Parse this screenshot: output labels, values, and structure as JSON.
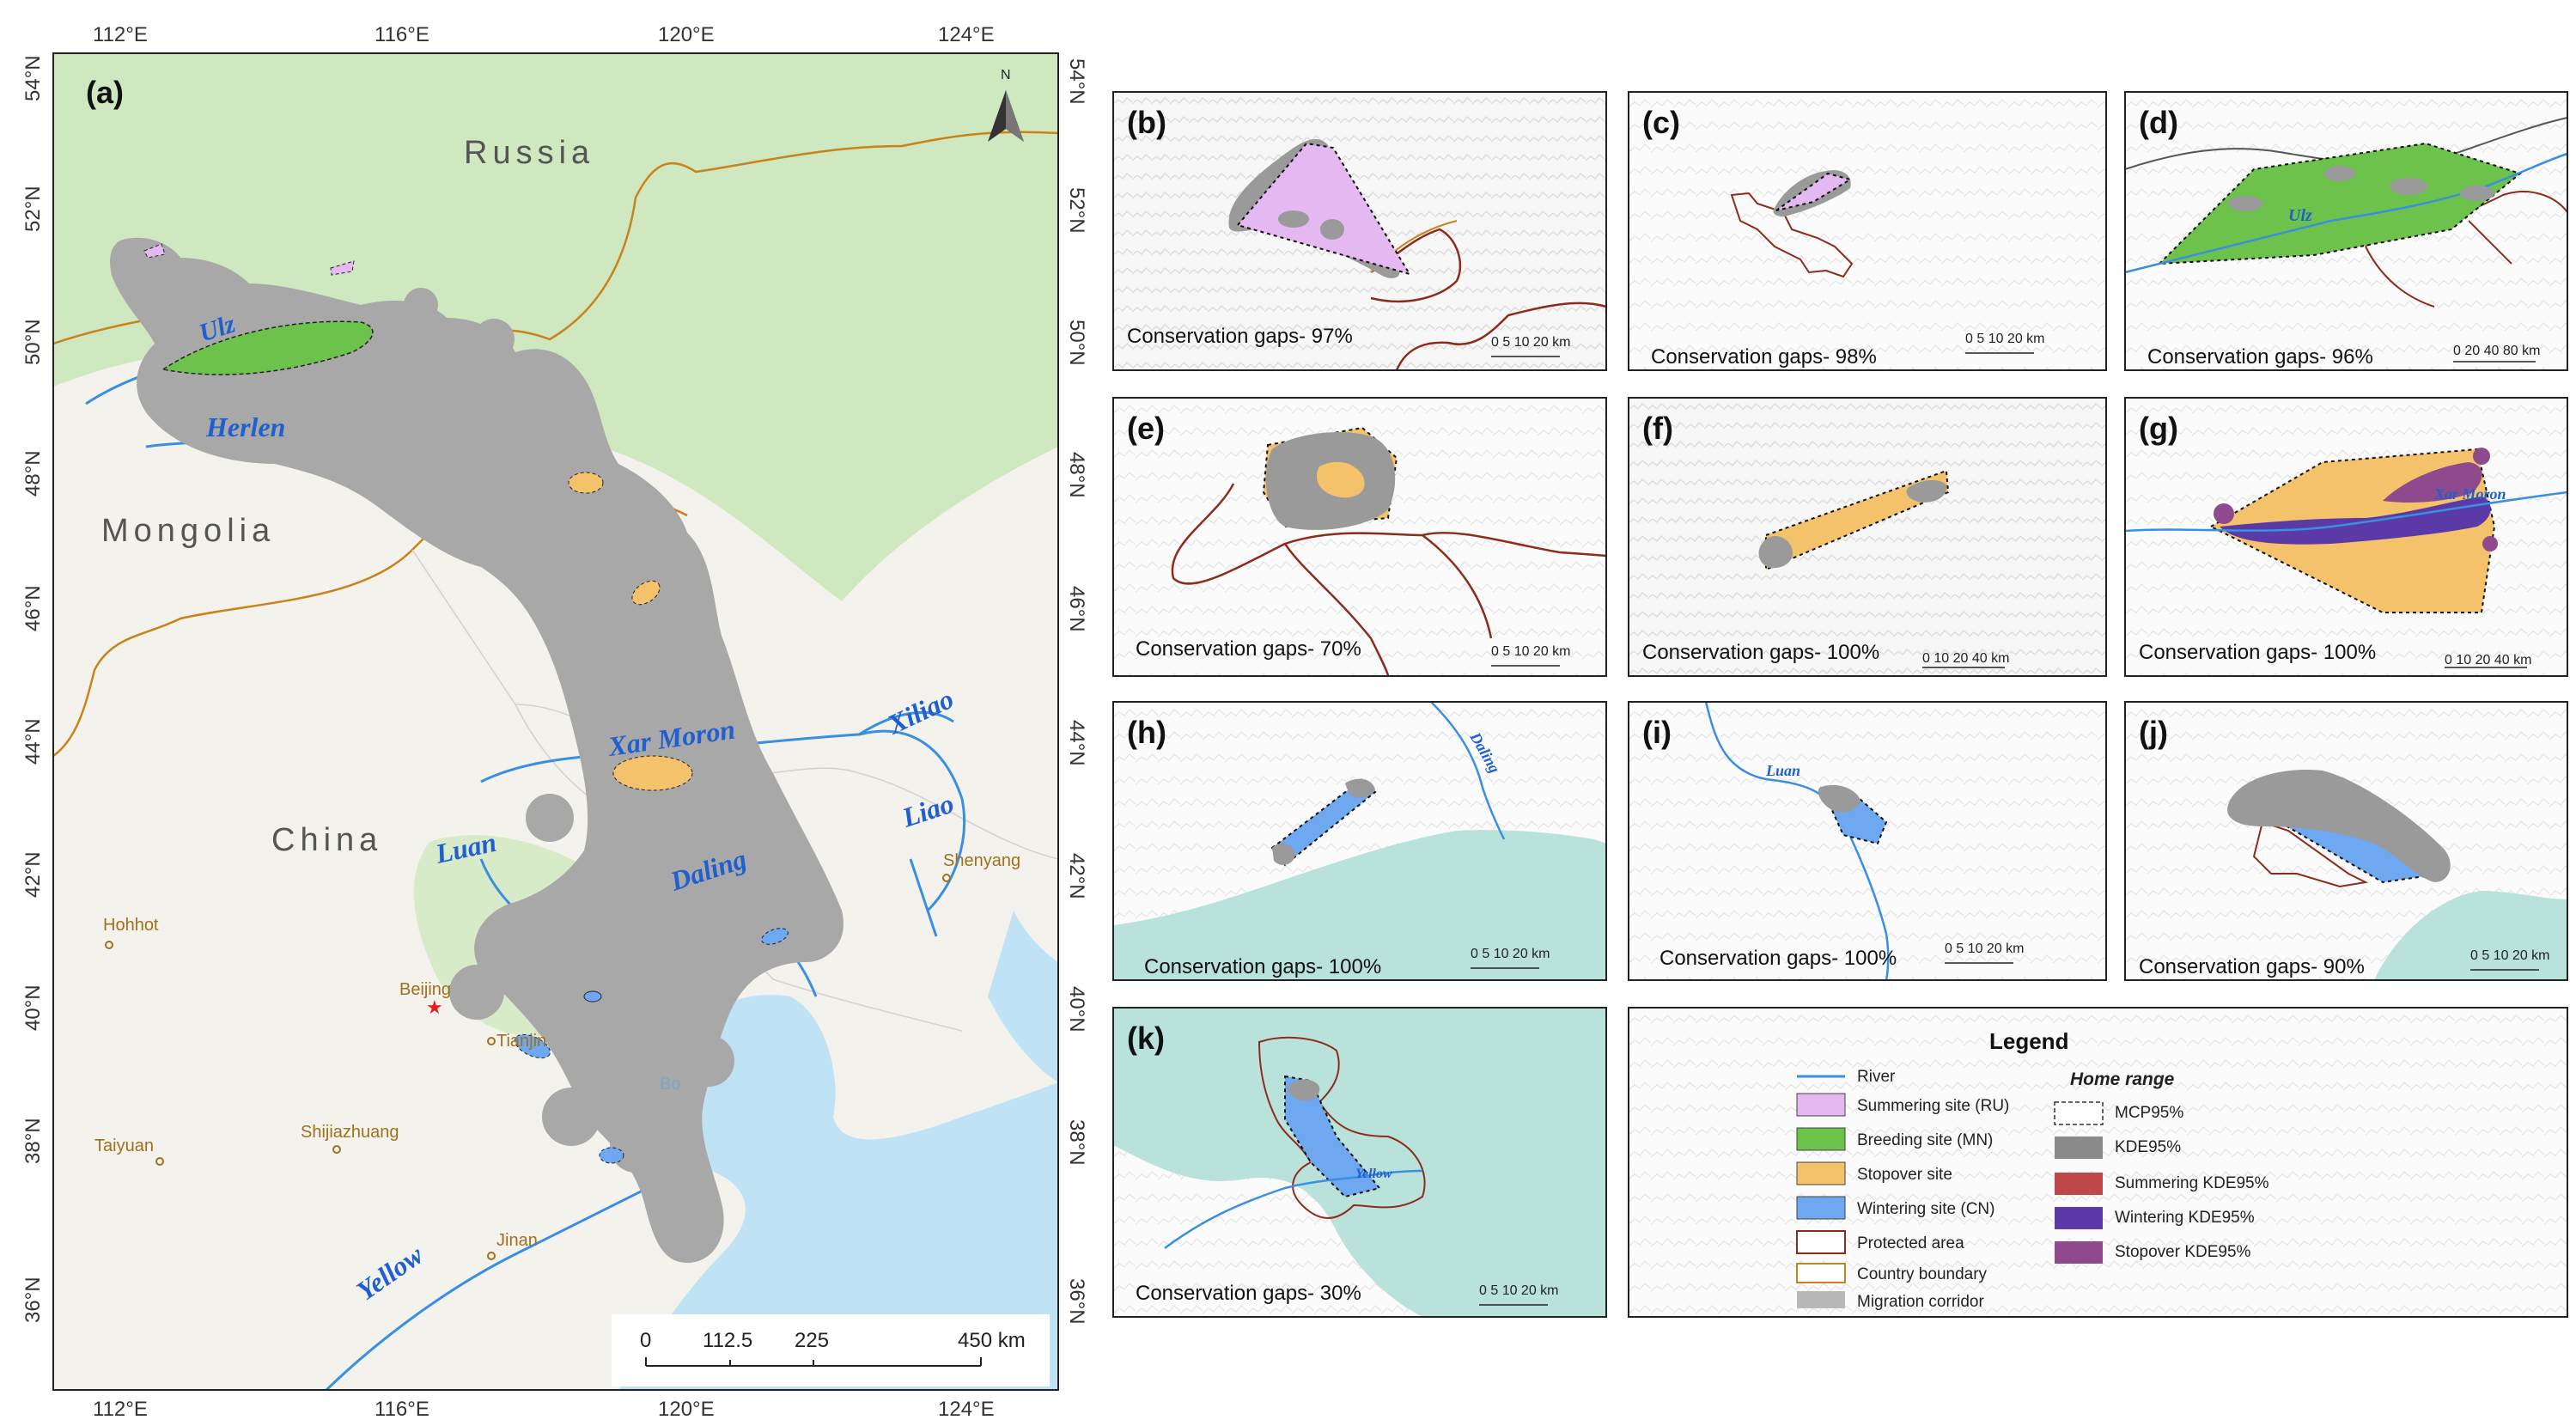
{
  "panel_a": {
    "label": "(a)",
    "north_label": "N",
    "lon_ticks": [
      "112°E",
      "116°E",
      "120°E",
      "124°E"
    ],
    "lat_ticks": [
      "54°N",
      "52°N",
      "50°N",
      "48°N",
      "46°N",
      "44°N",
      "42°N",
      "40°N",
      "38°N",
      "36°N"
    ],
    "countries": [
      "Russia",
      "Mongolia",
      "China"
    ],
    "rivers": [
      "Ulz",
      "Herlen",
      "Xar Moron",
      "Xiliao",
      "Luan",
      "Daling",
      "Liao",
      "Yellow"
    ],
    "cities": [
      "Hohhot",
      "Beijing",
      "Tianjin",
      "Shenyang",
      "Taiyuan",
      "Shijiazhuang",
      "Jinan"
    ],
    "sea_label": "Bo",
    "scale": {
      "ticks": [
        "0",
        "112.5",
        "225",
        "450 km"
      ]
    }
  },
  "panels": [
    {
      "label": "(b)",
      "gap": "Conservation gaps- 97%",
      "scale": "0 5 10     20 km"
    },
    {
      "label": "(c)",
      "gap": "Conservation gaps- 98%",
      "scale": "0 5 10     20 km"
    },
    {
      "label": "(d)",
      "gap": "Conservation gaps- 96%",
      "scale": "0 20 40      80 km",
      "river": "Ulz"
    },
    {
      "label": "(e)",
      "gap": "Conservation gaps- 70%",
      "scale": "0 5 10     20 km"
    },
    {
      "label": "(f)",
      "gap": "Conservation gaps- 100%",
      "scale": "0  10 20      40 km"
    },
    {
      "label": "(g)",
      "gap": "Conservation gaps- 100%",
      "scale": "0  10 20      40 km",
      "river": "Xar Moron"
    },
    {
      "label": "(h)",
      "gap": "Conservation gaps- 100%",
      "scale": "0 5 10     20 km",
      "river": "Daling"
    },
    {
      "label": "(i)",
      "gap": "Conservation gaps- 100%",
      "scale": "0 5 10     20 km",
      "river": "Luan"
    },
    {
      "label": "(j)",
      "gap": "Conservation gaps- 90%",
      "scale": "0 5 10     20 km"
    },
    {
      "label": "(k)",
      "gap": "Conservation gaps- 30%",
      "scale": "0 5 10     20 km",
      "river": "Yellow"
    }
  ],
  "legend": {
    "title": "Legend",
    "left_items": [
      {
        "label": "River",
        "color": "#3a8fe0",
        "kind": "line"
      },
      {
        "label": "Summering site (RU)",
        "color": "#e4b8f0",
        "kind": "fill"
      },
      {
        "label": "Breeding site (MN)",
        "color": "#6cc24a",
        "kind": "fill"
      },
      {
        "label": "Stopover site",
        "color": "#f3c26b",
        "kind": "fill"
      },
      {
        "label": "Wintering site (CN)",
        "color": "#6ea8f0",
        "kind": "fill"
      },
      {
        "label": "Protected area",
        "color": "#8b2c1c",
        "kind": "outline"
      },
      {
        "label": "Country boundary",
        "color": "#c8841a",
        "kind": "outline"
      },
      {
        "label": "Migration corridor",
        "color": "#b8b8b8",
        "kind": "fill"
      }
    ],
    "home_range_title": "Home range",
    "right_items": [
      {
        "label": "MCP95%",
        "color": "#333333",
        "kind": "dashed"
      },
      {
        "label": "KDE95%",
        "color": "#8a8a8a",
        "kind": "fill"
      },
      {
        "label": "Summering KDE95%",
        "color": "#c0484a",
        "kind": "fill"
      },
      {
        "label": "Wintering KDE95%",
        "color": "#5b3aa8",
        "kind": "fill"
      },
      {
        "label": "Stopover KDE95%",
        "color": "#8e4a8c",
        "kind": "fill"
      }
    ]
  },
  "colors": {
    "forest": "#cfe8c0",
    "land": "#f4f2ec",
    "sea": "#bfe3f5",
    "relief": "#efefef",
    "corridor": "#a0a0a0",
    "protected": "#8b2c1c",
    "boundary": "#c8841a",
    "river": "#3a8fe0"
  }
}
